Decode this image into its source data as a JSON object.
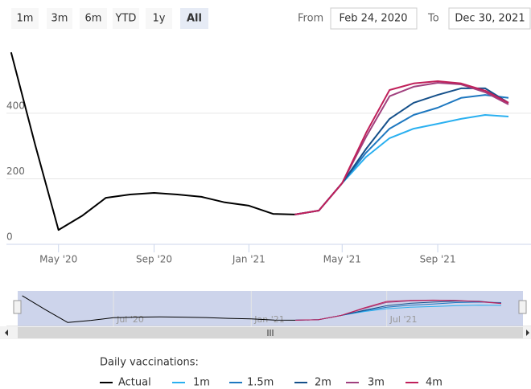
{
  "range_selector": {
    "buttons": [
      "1m",
      "3m",
      "6m",
      "YTD",
      "1y",
      "All"
    ],
    "selected": "All",
    "from_label": "From",
    "from": "Feb 24, 2020",
    "to_label": "To",
    "to": "Dec 30, 2021"
  },
  "chart_data": {
    "type": "line",
    "legend_title": "Daily vaccinations:",
    "xlim": [
      "2020-02-24",
      "2021-12-30"
    ],
    "xticks": [
      {
        "value": "2020-05",
        "label": "May '20"
      },
      {
        "value": "2020-09",
        "label": "Sep '20"
      },
      {
        "value": "2021-01",
        "label": "Jan '21"
      },
      {
        "value": "2021-05",
        "label": "May '21"
      },
      {
        "value": "2021-09",
        "label": "Sep '21"
      }
    ],
    "ylim": [
      0,
      650
    ],
    "yticks": [
      0,
      200,
      400
    ],
    "grid": true,
    "navigator_xticks": [
      {
        "value": "2020-07",
        "label": "Jul '20"
      },
      {
        "value": "2021-01",
        "label": "Jan '21"
      },
      {
        "value": "2021-07",
        "label": "Jul '21"
      }
    ],
    "x": [
      "2020-03",
      "2020-04",
      "2020-05",
      "2020-06",
      "2020-07",
      "2020-08",
      "2020-09",
      "2020-10",
      "2020-11",
      "2020-12",
      "2021-01",
      "2021-02",
      "2021-03",
      "2021-04",
      "2021-05",
      "2021-06",
      "2021-07",
      "2021-08",
      "2021-09",
      "2021-10",
      "2021-11",
      "2021-12"
    ],
    "series": [
      {
        "name": "Actual",
        "color": "#000000",
        "values": [
          586,
          304,
          44,
          88,
          142,
          152,
          157,
          152,
          145,
          128,
          118,
          93,
          91,
          null,
          null,
          null,
          null,
          null,
          null,
          null,
          null,
          null
        ]
      },
      {
        "name": "1m",
        "color": "#2ab0f0",
        "values": [
          null,
          null,
          null,
          null,
          null,
          null,
          null,
          null,
          null,
          null,
          null,
          null,
          91,
          103,
          187,
          267,
          324,
          353,
          368,
          383,
          395,
          390
        ]
      },
      {
        "name": "1.5m",
        "color": "#1e78c0",
        "values": [
          null,
          null,
          null,
          null,
          null,
          null,
          null,
          null,
          null,
          null,
          null,
          null,
          91,
          103,
          187,
          280,
          353,
          395,
          417,
          447,
          456,
          447
        ]
      },
      {
        "name": "2m",
        "color": "#15508a",
        "values": [
          null,
          null,
          null,
          null,
          null,
          null,
          null,
          null,
          null,
          null,
          null,
          null,
          91,
          103,
          187,
          292,
          383,
          432,
          456,
          476,
          476,
          432
        ]
      },
      {
        "name": "3m",
        "color": "#a0407e",
        "values": [
          null,
          null,
          null,
          null,
          null,
          null,
          null,
          null,
          null,
          null,
          null,
          null,
          91,
          103,
          187,
          329,
          452,
          481,
          493,
          488,
          464,
          427
        ]
      },
      {
        "name": "4m",
        "color": "#c0205a",
        "values": [
          null,
          null,
          null,
          null,
          null,
          null,
          null,
          null,
          null,
          null,
          null,
          null,
          91,
          103,
          187,
          341,
          471,
          491,
          498,
          491,
          469,
          432
        ]
      }
    ]
  }
}
